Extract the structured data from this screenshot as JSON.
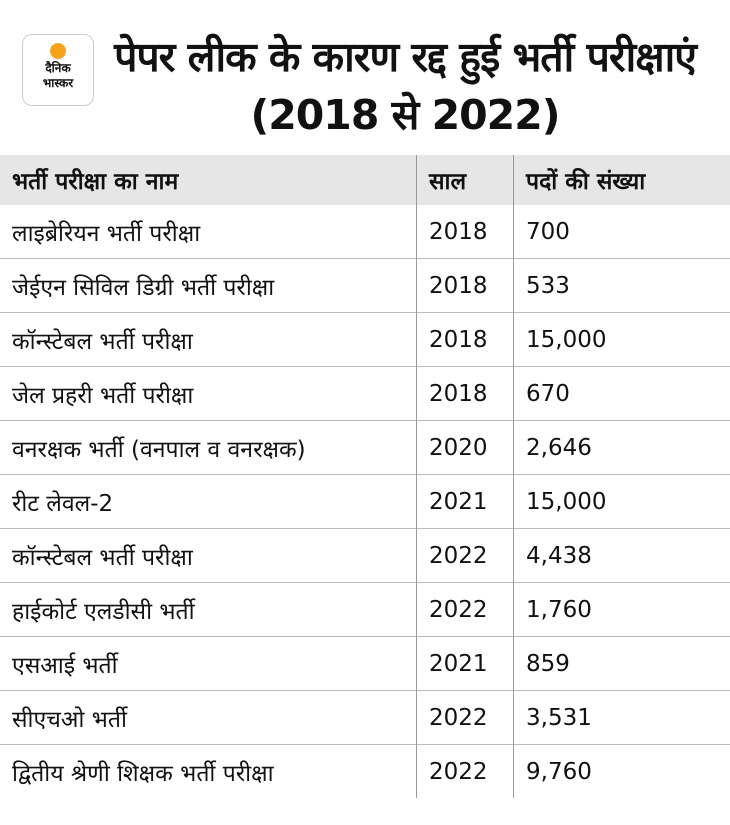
{
  "logo": {
    "line1": "दैनिक",
    "line2": "भास्कर",
    "color": "#f7a21b"
  },
  "title": "पेपर लीक के कारण रद्द हुई भर्ती परीक्षाएं (2018 से 2022)",
  "table": {
    "headers": [
      "भर्ती परीक्षा का नाम",
      "साल",
      "पदों की संख्या"
    ],
    "rows": [
      [
        "लाइब्रेरियन भर्ती परीक्षा",
        "2018",
        "700"
      ],
      [
        "जेईएन सिविल डिग्री भर्ती परीक्षा",
        "2018",
        "533"
      ],
      [
        "कॉन्स्टेबल भर्ती परीक्षा",
        "2018",
        "15,000"
      ],
      [
        "जेल प्रहरी भर्ती परीक्षा",
        "2018",
        "670"
      ],
      [
        "वनरक्षक भर्ती (वनपाल व वनरक्षक)",
        "2020",
        "2,646"
      ],
      [
        "रीट लेवल-2",
        "2021",
        "15,000"
      ],
      [
        "कॉन्स्टेबल भर्ती परीक्षा",
        "2022",
        "4,438"
      ],
      [
        "हाईकोर्ट एलडीसी भर्ती",
        "2022",
        "1,760"
      ],
      [
        "एसआई भर्ती",
        "2021",
        "859"
      ],
      [
        "सीएचओ भर्ती",
        "2022",
        "3,531"
      ],
      [
        "द्वितीय श्रेणी शिक्षक भर्ती परीक्षा",
        "2022",
        "9,760"
      ]
    ]
  }
}
